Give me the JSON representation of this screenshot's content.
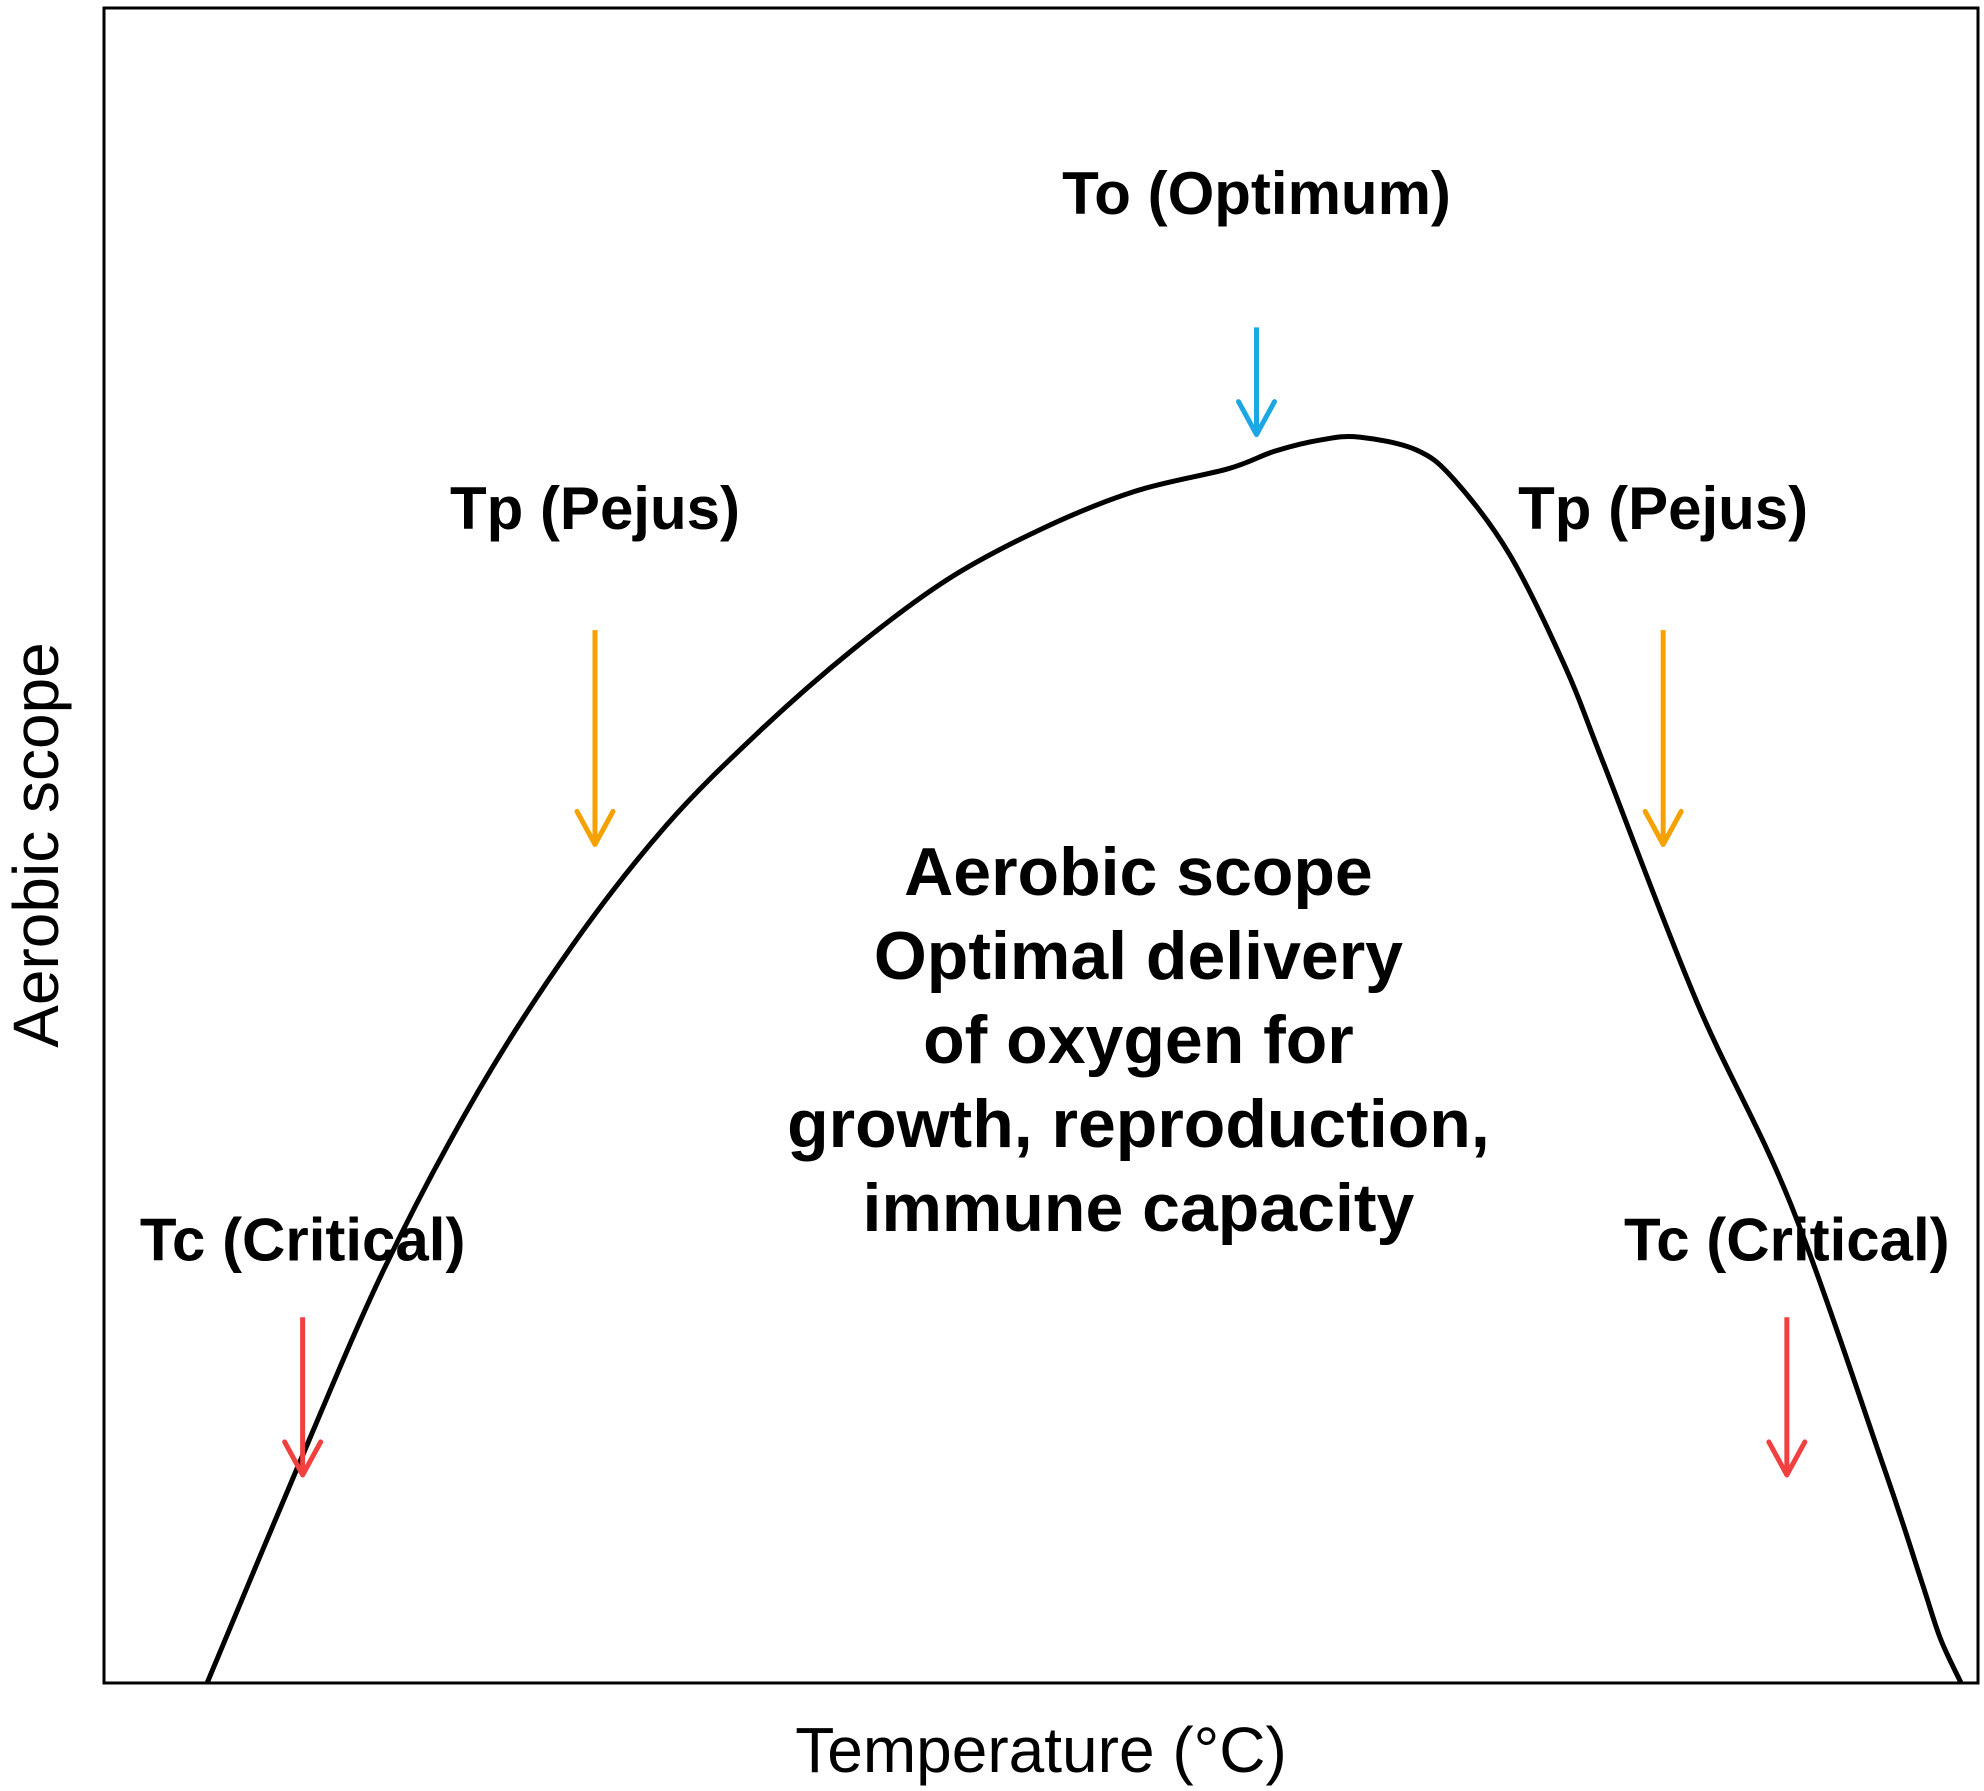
{
  "chart_data": {
    "type": "line",
    "title": "",
    "xlabel": "Temperature (°C)",
    "ylabel": "Aerobic scope",
    "xlim": [
      0,
      100
    ],
    "ylim": [
      0,
      100
    ],
    "grid": false,
    "legend": "none",
    "x_ticks": [],
    "y_ticks": [],
    "series": [
      {
        "color": "#000000",
        "x": [
          5.5,
          10.3,
          15,
          20,
          25,
          30,
          35,
          40,
          45,
          50,
          55,
          60,
          62.5,
          65,
          67,
          70,
          72,
          75,
          78,
          80,
          85,
          90,
          95,
          97,
          98,
          99.1
        ],
        "y": [
          0,
          17,
          33,
          47,
          58.5,
          68,
          75.5,
          82,
          87.5,
          91.5,
          94.5,
          96.3,
          97.7,
          98.6,
          98.8,
          97.8,
          95.5,
          89.5,
          80.5,
          73,
          54,
          38,
          17,
          8,
          3.5,
          0
        ]
      }
    ],
    "annotations": [
      {
        "id": "to-optimum",
        "text": "To (Optimum)",
        "color": "#1aa7e4",
        "x": 61.5,
        "y_tail": 107.5,
        "y_head": 99.0,
        "text_y": 116.5
      },
      {
        "id": "tp-left",
        "text": "Tp (Pejus)",
        "color": "#f5a100",
        "x": 26.2,
        "y_tail": 83.5,
        "y_head": 66.5,
        "text_y": 91.5
      },
      {
        "id": "tp-right",
        "text": "Tp (Pejus)",
        "color": "#f5a100",
        "x": 83.2,
        "y_tail": 83.5,
        "y_head": 66.5,
        "text_y": 91.5
      },
      {
        "id": "tc-left",
        "text": "Tc (Critical)",
        "color": "#f04040",
        "x": 10.6,
        "y_tail": 29.0,
        "y_head": 16.5,
        "text_y": 33.5
      },
      {
        "id": "tc-right",
        "text": "Tc (Critical)",
        "color": "#f04040",
        "x": 89.8,
        "y_tail": 29.0,
        "y_head": 16.5,
        "text_y": 33.5
      }
    ],
    "center_text": {
      "lines": [
        "Aerobic scope",
        "Optimal delivery",
        "of oxygen for",
        "growth, reproduction,",
        "immune capacity"
      ],
      "x": 55.2,
      "y": 62.5
    }
  }
}
